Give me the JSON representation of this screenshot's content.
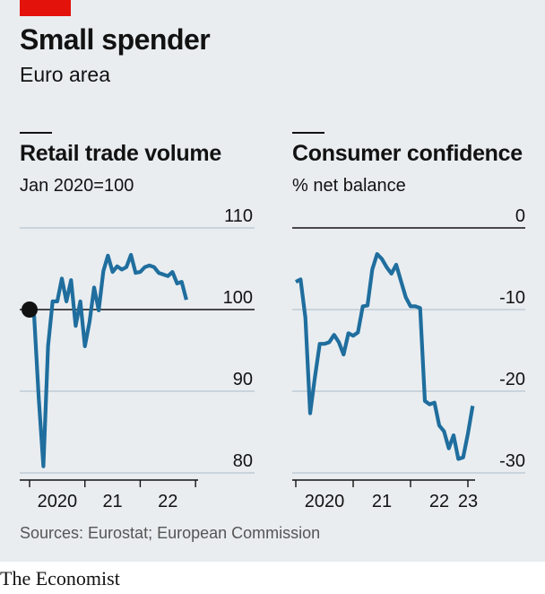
{
  "header": {
    "title": "Small spender",
    "subtitle": "Euro area"
  },
  "source": "Sources: Eurostat; European Commission",
  "brand": "The Economist",
  "colors": {
    "line": "#1f6e9e",
    "accent": "#e3120b",
    "background": "#e9edf0"
  },
  "chart_data": [
    {
      "type": "line",
      "title": "Retail trade volume",
      "ylabel": "Jan 2020=100",
      "ylim": [
        80,
        110
      ],
      "yticks": [
        80,
        90,
        100,
        110
      ],
      "ytick_labels": [
        "80",
        "90",
        "100",
        "110"
      ],
      "xlim": [
        0,
        35
      ],
      "xticks": [
        0,
        12,
        24,
        36
      ],
      "xtick_labels": [
        "2020",
        "21",
        "22"
      ],
      "xtick_label_pos": [
        6,
        18,
        30
      ],
      "baseline": 100,
      "start_marker": true,
      "axis_side": "right",
      "series": [
        {
          "x": [
            0,
            1,
            2,
            3,
            4,
            5,
            6,
            7,
            8,
            9,
            10,
            11,
            12,
            13,
            14,
            15,
            16,
            17,
            18,
            19,
            20,
            21,
            22,
            23,
            24,
            25,
            26,
            27,
            28,
            29,
            30,
            31,
            32,
            33,
            34
          ],
          "values": [
            100.2,
            99.2,
            89,
            80.8,
            95.5,
            101,
            101,
            103.8,
            101,
            103.6,
            98,
            101,
            95.5,
            98.5,
            102.7,
            99.9,
            104.7,
            106.6,
            104.6,
            105.3,
            104.9,
            105.2,
            106.7,
            104.5,
            104.6,
            105.2,
            105.4,
            105.2,
            104.5,
            104.3,
            104.1,
            104.6,
            103.2,
            103.4,
            101.2
          ]
        }
      ]
    },
    {
      "type": "line",
      "title": "Consumer confidence",
      "ylabel": "% net balance",
      "ylim": [
        -30,
        0
      ],
      "yticks": [
        -30,
        -20,
        -10,
        0
      ],
      "ytick_labels": [
        "-30",
        "-20",
        "-10",
        "0"
      ],
      "xlim": [
        0,
        36
      ],
      "xticks": [
        0,
        12,
        24,
        36
      ],
      "xtick_labels": [
        "2020",
        "21",
        "22",
        "23"
      ],
      "xtick_label_pos": [
        6,
        18,
        30,
        36
      ],
      "baseline": 0,
      "axis_side": "right",
      "series": [
        {
          "x": [
            0,
            1,
            2,
            3,
            4,
            5,
            6,
            7,
            8,
            9,
            10,
            11,
            12,
            13,
            14,
            15,
            16,
            17,
            18,
            19,
            20,
            21,
            22,
            23,
            24,
            25,
            26,
            27,
            28,
            29,
            30,
            31,
            32,
            33,
            34,
            35,
            36,
            37
          ],
          "values": [
            -6.6,
            -6.3,
            -11,
            -22.7,
            -18.3,
            -14.2,
            -14.2,
            -14,
            -13.1,
            -14,
            -15.5,
            -12.9,
            -13.2,
            -12.8,
            -9.6,
            -9.5,
            -5.1,
            -3.2,
            -3.8,
            -4.8,
            -5.6,
            -4.5,
            -6.5,
            -8.5,
            -9.6,
            -9.6,
            -9.8,
            -21.2,
            -21.6,
            -21.4,
            -24.2,
            -24.9,
            -27,
            -25.4,
            -28.3,
            -28.1,
            -25.2,
            -21.8
          ]
        }
      ]
    }
  ]
}
